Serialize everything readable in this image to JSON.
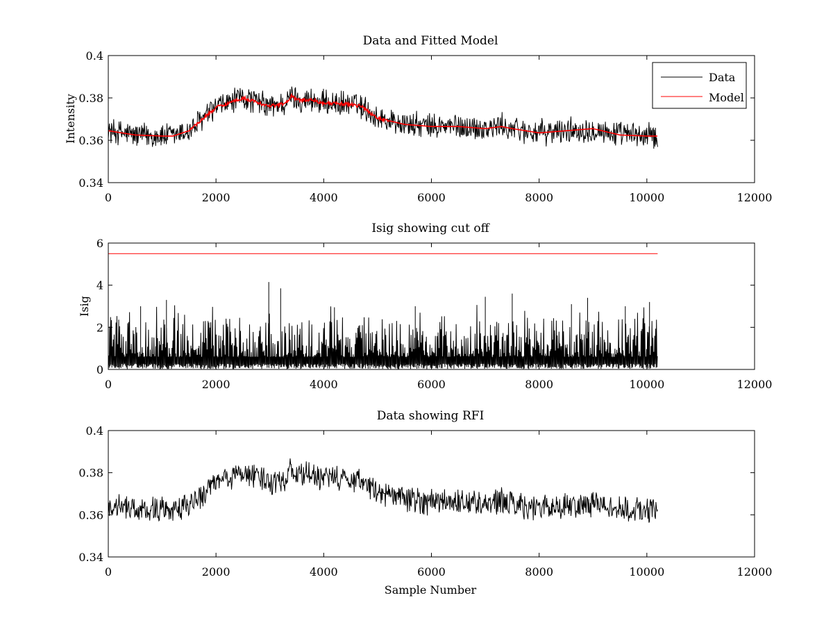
{
  "chart_data": [
    {
      "type": "line",
      "title": "Data and Fitted Model",
      "xlabel": "",
      "ylabel": "Intensity",
      "xlim": [
        0,
        12000
      ],
      "ylim": [
        0.34,
        0.4
      ],
      "xticks": [
        0,
        2000,
        4000,
        6000,
        8000,
        10000,
        12000
      ],
      "xtick_labels": [
        "0",
        "2000",
        "4000",
        "6000",
        "8000",
        "10000",
        "12000"
      ],
      "yticks": [
        0.34,
        0.36,
        0.38,
        0.4
      ],
      "ytick_labels": [
        "0.34",
        "0.36",
        "0.38",
        "0.4"
      ],
      "grid": false,
      "legend": "top-right",
      "series": [
        {
          "name": "Data",
          "color": "#000000",
          "style": "noisy",
          "n_samples": 10200,
          "noise_halfwidth": 0.007,
          "x": [
            0,
            500,
            1000,
            1200,
            1500,
            2000,
            2500,
            3000,
            3300,
            3400,
            3500,
            3800,
            4000,
            4500,
            4700,
            5000,
            5500,
            6000,
            6500,
            7000,
            7300,
            7500,
            8000,
            8500,
            9000,
            9500,
            10000,
            10200
          ],
          "y": [
            0.3645,
            0.3625,
            0.362,
            0.362,
            0.3645,
            0.3755,
            0.38,
            0.376,
            0.3775,
            0.381,
            0.379,
            0.379,
            0.3775,
            0.377,
            0.376,
            0.3705,
            0.3675,
            0.3665,
            0.3665,
            0.3655,
            0.3665,
            0.3655,
            0.3635,
            0.3645,
            0.3655,
            0.3625,
            0.362,
            0.362
          ]
        },
        {
          "name": "Model",
          "color": "#ff0000",
          "style": "wiggly",
          "x": [
            0,
            500,
            1000,
            1200,
            1500,
            2000,
            2500,
            3000,
            3300,
            3400,
            3500,
            3800,
            4000,
            4500,
            4700,
            5000,
            5500,
            6000,
            6500,
            7000,
            7300,
            7500,
            8000,
            8500,
            9000,
            9500,
            10000,
            10200
          ],
          "y": [
            0.3645,
            0.3625,
            0.362,
            0.362,
            0.3645,
            0.3755,
            0.38,
            0.376,
            0.3775,
            0.381,
            0.379,
            0.379,
            0.3775,
            0.377,
            0.376,
            0.3705,
            0.3675,
            0.3665,
            0.3665,
            0.3655,
            0.3665,
            0.3655,
            0.3635,
            0.3645,
            0.3655,
            0.3625,
            0.362,
            0.362
          ]
        }
      ]
    },
    {
      "type": "line",
      "title": "Isig showing cut off",
      "xlabel": "",
      "ylabel": "Isig",
      "xlim": [
        0,
        12000
      ],
      "ylim": [
        0,
        6
      ],
      "xticks": [
        0,
        2000,
        4000,
        6000,
        8000,
        10000,
        12000
      ],
      "xtick_labels": [
        "0",
        "2000",
        "4000",
        "6000",
        "8000",
        "10000",
        "12000"
      ],
      "yticks": [
        0,
        2,
        4,
        6
      ],
      "ytick_labels": [
        "0",
        "2",
        "4",
        "6"
      ],
      "grid": false,
      "series": [
        {
          "name": "",
          "color": "#000000",
          "style": "spiky",
          "n_samples": 10200,
          "typical_max": 2.5,
          "x": [
            0,
            10200
          ],
          "y": [
            0.8,
            0.8
          ],
          "spikes": [
            {
              "x": 2980,
              "y": 4.15
            },
            {
              "x": 3200,
              "y": 3.85
            },
            {
              "x": 7500,
              "y": 3.6
            },
            {
              "x": 7000,
              "y": 3.45
            },
            {
              "x": 8900,
              "y": 3.4
            },
            {
              "x": 1080,
              "y": 3.3
            },
            {
              "x": 10050,
              "y": 3.2
            },
            {
              "x": 600,
              "y": 3.0
            },
            {
              "x": 5700,
              "y": 3.0
            },
            {
              "x": 8600,
              "y": 3.1
            },
            {
              "x": 4200,
              "y": 2.95
            },
            {
              "x": 9600,
              "y": 3.0
            }
          ]
        },
        {
          "name": "",
          "color": "#ff0000",
          "style": "flat",
          "x": [
            0,
            10200
          ],
          "y": [
            5.5,
            5.5
          ]
        }
      ]
    },
    {
      "type": "line",
      "title": "Data showing RFI",
      "xlabel": "Sample Number",
      "ylabel": "",
      "xlim": [
        0,
        12000
      ],
      "ylim": [
        0.34,
        0.4
      ],
      "xticks": [
        0,
        2000,
        4000,
        6000,
        8000,
        10000,
        12000
      ],
      "xtick_labels": [
        "0",
        "2000",
        "4000",
        "6000",
        "8000",
        "10000",
        "12000"
      ],
      "yticks": [
        0.34,
        0.36,
        0.38,
        0.4
      ],
      "ytick_labels": [
        "0.34",
        "0.36",
        "0.38",
        "0.4"
      ],
      "grid": false,
      "series": [
        {
          "name": "",
          "color": "#000000",
          "style": "noisy",
          "n_samples": 10200,
          "noise_halfwidth": 0.007,
          "x": [
            0,
            500,
            1000,
            1200,
            1500,
            2000,
            2500,
            3000,
            3300,
            3400,
            3500,
            3800,
            4000,
            4500,
            4700,
            5000,
            5500,
            6000,
            6500,
            7000,
            7300,
            7500,
            8000,
            8500,
            9000,
            9500,
            10000,
            10200
          ],
          "y": [
            0.3645,
            0.3625,
            0.362,
            0.362,
            0.3645,
            0.3755,
            0.38,
            0.376,
            0.3775,
            0.381,
            0.379,
            0.379,
            0.3775,
            0.377,
            0.376,
            0.3705,
            0.3675,
            0.3665,
            0.3665,
            0.3655,
            0.3665,
            0.3655,
            0.3635,
            0.3645,
            0.3655,
            0.3625,
            0.362,
            0.362
          ]
        }
      ]
    }
  ]
}
